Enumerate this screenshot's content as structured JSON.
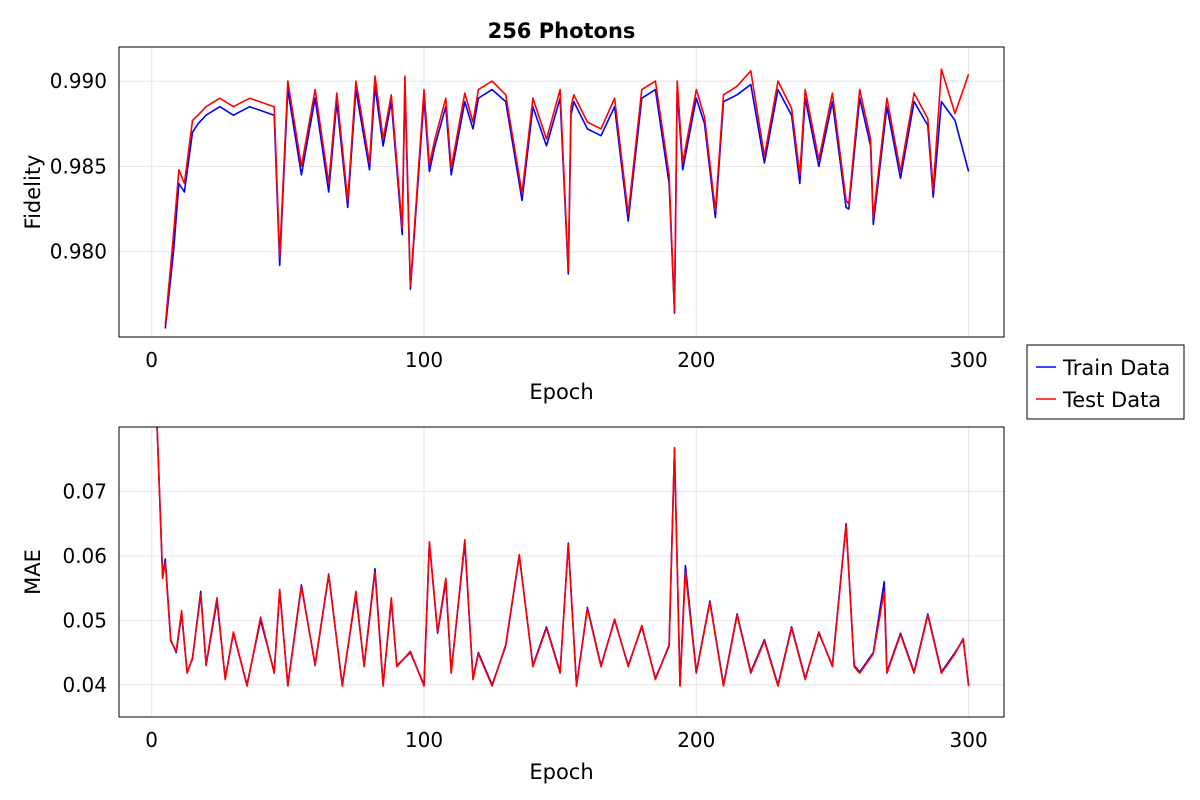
{
  "chart_data": [
    {
      "type": "line",
      "title": "256 Photons",
      "xlabel": "Epoch",
      "ylabel": "Fidelity",
      "xlim": [
        -12,
        313
      ],
      "ylim": [
        0.975,
        0.992
      ],
      "xticks": [
        0,
        100,
        200,
        300
      ],
      "xtick_labels": [
        "0",
        "100",
        "200",
        "300"
      ],
      "yticks": [
        0.98,
        0.985,
        0.99
      ],
      "ytick_labels": [
        "0.980",
        "0.985",
        "0.990"
      ],
      "grid": true,
      "series": [
        {
          "name": "Train Data",
          "color": "#0000ff",
          "x": [
            5,
            8,
            10,
            12,
            15,
            17,
            20,
            25,
            30,
            36,
            45,
            47,
            50,
            55,
            60,
            65,
            68,
            72,
            75,
            80,
            82,
            85,
            88,
            92,
            93,
            95,
            100,
            102,
            104,
            108,
            110,
            115,
            118,
            120,
            125,
            130,
            135,
            136,
            140,
            145,
            150,
            153,
            154,
            155,
            160,
            165,
            170,
            175,
            180,
            185,
            190,
            192,
            193,
            195,
            200,
            203,
            207,
            210,
            215,
            220,
            225,
            230,
            235,
            238,
            240,
            245,
            250,
            255,
            256,
            260,
            264,
            265,
            270,
            275,
            280,
            285,
            287,
            290,
            295,
            300
          ],
          "y": [
            0.9755,
            0.98,
            0.984,
            0.9835,
            0.987,
            0.9875,
            0.988,
            0.9885,
            0.988,
            0.9885,
            0.988,
            0.9792,
            0.9895,
            0.9845,
            0.989,
            0.9835,
            0.9888,
            0.9826,
            0.9895,
            0.9848,
            0.9897,
            0.9862,
            0.9888,
            0.981,
            0.9898,
            0.9778,
            0.989,
            0.9847,
            0.9862,
            0.9885,
            0.9845,
            0.9888,
            0.9872,
            0.989,
            0.9895,
            0.9888,
            0.984,
            0.983,
            0.9885,
            0.9862,
            0.989,
            0.9787,
            0.988,
            0.9888,
            0.9872,
            0.9868,
            0.9885,
            0.9818,
            0.989,
            0.9895,
            0.984,
            0.9764,
            0.9895,
            0.9848,
            0.989,
            0.9875,
            0.982,
            0.9888,
            0.9892,
            0.9898,
            0.9852,
            0.9895,
            0.988,
            0.984,
            0.989,
            0.985,
            0.9888,
            0.9826,
            0.9825,
            0.989,
            0.9862,
            0.9816,
            0.9885,
            0.9843,
            0.9888,
            0.9874,
            0.9832,
            0.9888,
            0.9877,
            0.9847
          ]
        },
        {
          "name": "Test Data",
          "color": "#ff0000",
          "x": [
            5,
            8,
            10,
            12,
            15,
            17,
            20,
            25,
            30,
            36,
            45,
            47,
            50,
            55,
            60,
            65,
            68,
            72,
            75,
            80,
            82,
            85,
            88,
            92,
            93,
            95,
            100,
            102,
            104,
            108,
            110,
            115,
            118,
            120,
            125,
            130,
            135,
            136,
            140,
            145,
            150,
            153,
            154,
            155,
            160,
            165,
            170,
            175,
            180,
            185,
            190,
            192,
            193,
            195,
            200,
            203,
            207,
            210,
            215,
            220,
            225,
            230,
            235,
            238,
            240,
            245,
            250,
            255,
            256,
            260,
            264,
            265,
            270,
            275,
            280,
            285,
            287,
            290,
            295,
            300
          ],
          "y": [
            0.9757,
            0.981,
            0.9848,
            0.984,
            0.9877,
            0.988,
            0.9885,
            0.989,
            0.9885,
            0.989,
            0.9885,
            0.9797,
            0.99,
            0.985,
            0.9895,
            0.984,
            0.9893,
            0.983,
            0.99,
            0.9852,
            0.9903,
            0.9866,
            0.9892,
            0.9814,
            0.9903,
            0.978,
            0.9895,
            0.9851,
            0.9866,
            0.989,
            0.9849,
            0.9893,
            0.9876,
            0.9895,
            0.99,
            0.9892,
            0.9844,
            0.9834,
            0.989,
            0.9866,
            0.9895,
            0.9789,
            0.9885,
            0.9892,
            0.9876,
            0.9872,
            0.989,
            0.9822,
            0.9895,
            0.99,
            0.9845,
            0.9765,
            0.99,
            0.9852,
            0.9895,
            0.9879,
            0.9824,
            0.9892,
            0.9897,
            0.9906,
            0.9856,
            0.99,
            0.9884,
            0.9845,
            0.9895,
            0.9854,
            0.9893,
            0.983,
            0.9828,
            0.9895,
            0.9866,
            0.982,
            0.989,
            0.9847,
            0.9893,
            0.9878,
            0.9836,
            0.9907,
            0.9881,
            0.9904
          ]
        }
      ]
    },
    {
      "type": "line",
      "title": "",
      "xlabel": "Epoch",
      "ylabel": "MAE",
      "xlim": [
        -12,
        313
      ],
      "ylim": [
        0.035,
        0.08
      ],
      "xticks": [
        0,
        100,
        200,
        300
      ],
      "xtick_labels": [
        "0",
        "100",
        "200",
        "300"
      ],
      "yticks": [
        0.04,
        0.05,
        0.06,
        0.07
      ],
      "ytick_labels": [
        "0.04",
        "0.05",
        "0.06",
        "0.07"
      ],
      "grid": true,
      "series": [
        {
          "name": "Train Data",
          "color": "#0000ff",
          "x": [
            2,
            4,
            5,
            7,
            9,
            11,
            13,
            15,
            18,
            20,
            24,
            27,
            30,
            35,
            40,
            45,
            47,
            50,
            55,
            60,
            65,
            70,
            75,
            78,
            82,
            85,
            88,
            90,
            95,
            100,
            102,
            105,
            108,
            110,
            115,
            118,
            120,
            125,
            130,
            135,
            140,
            145,
            150,
            153,
            156,
            160,
            165,
            170,
            175,
            180,
            185,
            190,
            192,
            194,
            196,
            200,
            205,
            210,
            215,
            220,
            225,
            230,
            235,
            240,
            245,
            250,
            255,
            258,
            260,
            265,
            269,
            270,
            275,
            280,
            285,
            290,
            295,
            298,
            300
          ],
          "y": [
            0.08,
            0.057,
            0.0595,
            0.047,
            0.045,
            0.051,
            0.042,
            0.044,
            0.0545,
            0.043,
            0.053,
            0.041,
            0.048,
            0.04,
            0.05,
            0.042,
            0.0545,
            0.04,
            0.0555,
            0.043,
            0.057,
            0.04,
            0.054,
            0.043,
            0.058,
            0.04,
            0.053,
            0.043,
            0.045,
            0.04,
            0.062,
            0.048,
            0.056,
            0.042,
            0.062,
            0.041,
            0.045,
            0.04,
            0.046,
            0.06,
            0.043,
            0.049,
            0.042,
            0.062,
            0.04,
            0.052,
            0.043,
            0.05,
            0.043,
            0.049,
            0.041,
            0.046,
            0.0765,
            0.04,
            0.0585,
            0.042,
            0.053,
            0.04,
            0.051,
            0.042,
            0.047,
            0.04,
            0.049,
            0.041,
            0.048,
            0.043,
            0.065,
            0.043,
            0.042,
            0.045,
            0.056,
            0.042,
            0.048,
            0.042,
            0.051,
            0.042,
            0.045,
            0.047,
            0.04
          ]
        },
        {
          "name": "Test Data",
          "color": "#ff0000",
          "x": [
            2,
            4,
            5,
            7,
            9,
            11,
            13,
            15,
            18,
            20,
            24,
            27,
            30,
            35,
            40,
            45,
            47,
            50,
            55,
            60,
            65,
            70,
            75,
            78,
            82,
            85,
            88,
            90,
            95,
            100,
            102,
            105,
            108,
            110,
            115,
            118,
            120,
            125,
            130,
            135,
            140,
            145,
            150,
            153,
            156,
            160,
            165,
            170,
            175,
            180,
            185,
            190,
            192,
            194,
            196,
            200,
            205,
            210,
            215,
            220,
            225,
            230,
            235,
            240,
            245,
            250,
            255,
            258,
            260,
            265,
            269,
            270,
            275,
            280,
            285,
            290,
            295,
            298,
            300
          ],
          "y": [
            0.08,
            0.0565,
            0.059,
            0.0468,
            0.0452,
            0.0515,
            0.0418,
            0.0442,
            0.054,
            0.0432,
            0.0535,
            0.0408,
            0.0482,
            0.0398,
            0.0505,
            0.0418,
            0.0548,
            0.0398,
            0.0552,
            0.0432,
            0.0572,
            0.0398,
            0.0545,
            0.0428,
            0.0575,
            0.0398,
            0.0535,
            0.0428,
            0.0452,
            0.0398,
            0.0622,
            0.0482,
            0.0565,
            0.0418,
            0.0625,
            0.0408,
            0.0448,
            0.0398,
            0.0462,
            0.0602,
            0.0428,
            0.0488,
            0.0418,
            0.0618,
            0.0398,
            0.0518,
            0.0428,
            0.0502,
            0.0428,
            0.0492,
            0.0408,
            0.0462,
            0.0768,
            0.0398,
            0.0575,
            0.0418,
            0.0528,
            0.0398,
            0.0508,
            0.0418,
            0.0468,
            0.0398,
            0.0488,
            0.0408,
            0.0482,
            0.0428,
            0.0648,
            0.0428,
            0.0418,
            0.0448,
            0.0545,
            0.0418,
            0.0478,
            0.0418,
            0.0508,
            0.0418,
            0.0448,
            0.0472,
            0.0398
          ]
        }
      ]
    }
  ],
  "legend": {
    "placement": "right",
    "entries": [
      {
        "label": "Train Data",
        "color": "#0000ff"
      },
      {
        "label": "Test Data",
        "color": "#ff0000"
      }
    ]
  }
}
